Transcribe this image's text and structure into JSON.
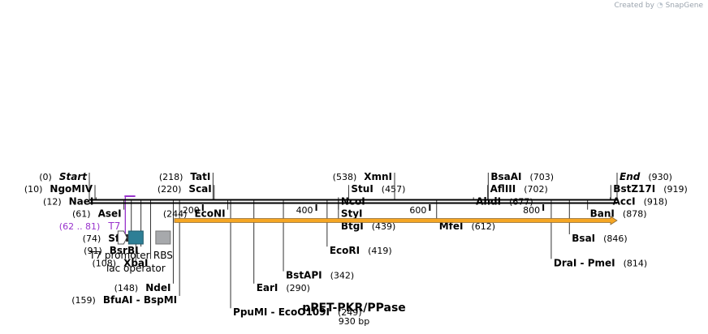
{
  "branding": {
    "created_by": "Created by",
    "product": "SnapGene"
  },
  "map": {
    "name": "pPET-PKR/PPase",
    "length_label": "930 bp",
    "length": 930,
    "ticks": [
      {
        "label": "200",
        "bp": 200
      },
      {
        "label": "400",
        "bp": 400
      },
      {
        "label": "600",
        "bp": 600
      },
      {
        "label": "800",
        "bp": 800
      }
    ],
    "sites": [
      {
        "name": "Start",
        "pos": "(0)",
        "bp": 0,
        "italic": true,
        "side": "left",
        "row": 0
      },
      {
        "name": "NgoMIV",
        "pos": "(10)",
        "bp": 10,
        "side": "left",
        "row": 1
      },
      {
        "name": "NaeI",
        "pos": "(12)",
        "bp": 12,
        "side": "left",
        "row": 2
      },
      {
        "name": "AseI",
        "pos": "(61)",
        "bp": 61,
        "side": "left",
        "row": 3
      },
      {
        "name": "SfcI",
        "pos": "(74)",
        "bp": 74,
        "side": "left",
        "row": 5
      },
      {
        "name": "BsrBI",
        "pos": "(91)",
        "bp": 91,
        "side": "left",
        "row": 6
      },
      {
        "name": "XbaI",
        "pos": "(108)",
        "bp": 108,
        "side": "left",
        "row": 7
      },
      {
        "name": "NdeI",
        "pos": "(148)",
        "bp": 148,
        "side": "left",
        "row": 9
      },
      {
        "name": "BfuAI  - BspMI",
        "pos": "(159)",
        "bp": 159,
        "side": "left",
        "row": 10
      },
      {
        "name": "TatI",
        "pos": "(218)",
        "bp": 218,
        "side": "left",
        "row": 0
      },
      {
        "name": "ScaI",
        "pos": "(220)",
        "bp": 220,
        "side": "left",
        "row": 1
      },
      {
        "name": "EcoNI",
        "pos": "(244)",
        "bp": 244,
        "side": "left",
        "row": 3
      },
      {
        "name": "PpuMI  - EcoO109I",
        "pos": "(249)",
        "bp": 249,
        "side": "right",
        "row": 11
      },
      {
        "name": "EarI",
        "pos": "(290)",
        "bp": 290,
        "side": "right",
        "row": 9
      },
      {
        "name": "BstAPI",
        "pos": "(342)",
        "bp": 342,
        "side": "right",
        "row": 8
      },
      {
        "name": "EcoRI",
        "pos": "(419)",
        "bp": 419,
        "side": "right",
        "row": 6
      },
      {
        "name": "BtgI",
        "pos": "(439)",
        "bp": 439,
        "side": "right",
        "row": 4
      },
      {
        "name": "StyI",
        "pos": "",
        "bp": 439,
        "side": "right",
        "row": 3
      },
      {
        "name": "NcoI",
        "pos": "",
        "bp": 439,
        "side": "right",
        "row": 2
      },
      {
        "name": "StuI",
        "pos": "(457)",
        "bp": 457,
        "side": "right",
        "row": 1
      },
      {
        "name": "XmnI",
        "pos": "(538)",
        "bp": 538,
        "side": "left",
        "row": 0
      },
      {
        "name": "MfeI",
        "pos": "(612)",
        "bp": 612,
        "side": "right",
        "row": 4
      },
      {
        "name": "AhdI",
        "pos": "(677)",
        "bp": 677,
        "side": "right",
        "row": 2
      },
      {
        "name": "AflIII",
        "pos": "(702)",
        "bp": 702,
        "side": "right",
        "row": 1
      },
      {
        "name": "BsaAI",
        "pos": "(703)",
        "bp": 703,
        "side": "right",
        "row": 0
      },
      {
        "name": "DraI  - PmeI",
        "pos": "(814)",
        "bp": 814,
        "side": "right",
        "row": 7
      },
      {
        "name": "BsaI",
        "pos": "(846)",
        "bp": 846,
        "side": "right",
        "row": 5
      },
      {
        "name": "BanI",
        "pos": "(878)",
        "bp": 878,
        "side": "right",
        "row": 3
      },
      {
        "name": "AccI",
        "pos": "(918)",
        "bp": 918,
        "side": "right",
        "row": 2
      },
      {
        "name": "BstZ17I",
        "pos": "(919)",
        "bp": 919,
        "side": "right",
        "row": 1
      },
      {
        "name": "End",
        "pos": "(930)",
        "bp": 930,
        "italic": true,
        "side": "right",
        "row": 0
      }
    ],
    "primer": {
      "name": "T7",
      "pos": "(62 .. 81)",
      "start": 62,
      "end": 81,
      "color": "#9933cc"
    },
    "orf": {
      "start": 150,
      "end": 930,
      "fill": "#f5a623",
      "stroke": "#8a6a3a"
    },
    "features": [
      {
        "label": "T7 promoter",
        "type": "promoter",
        "bp": 62
      },
      {
        "label": "lac operator",
        "type": "operator",
        "bp": 82,
        "color": "#2e7f96"
      },
      {
        "label": "RBS",
        "type": "rbs",
        "bp": 130,
        "color": "#a7a9ac"
      }
    ]
  }
}
